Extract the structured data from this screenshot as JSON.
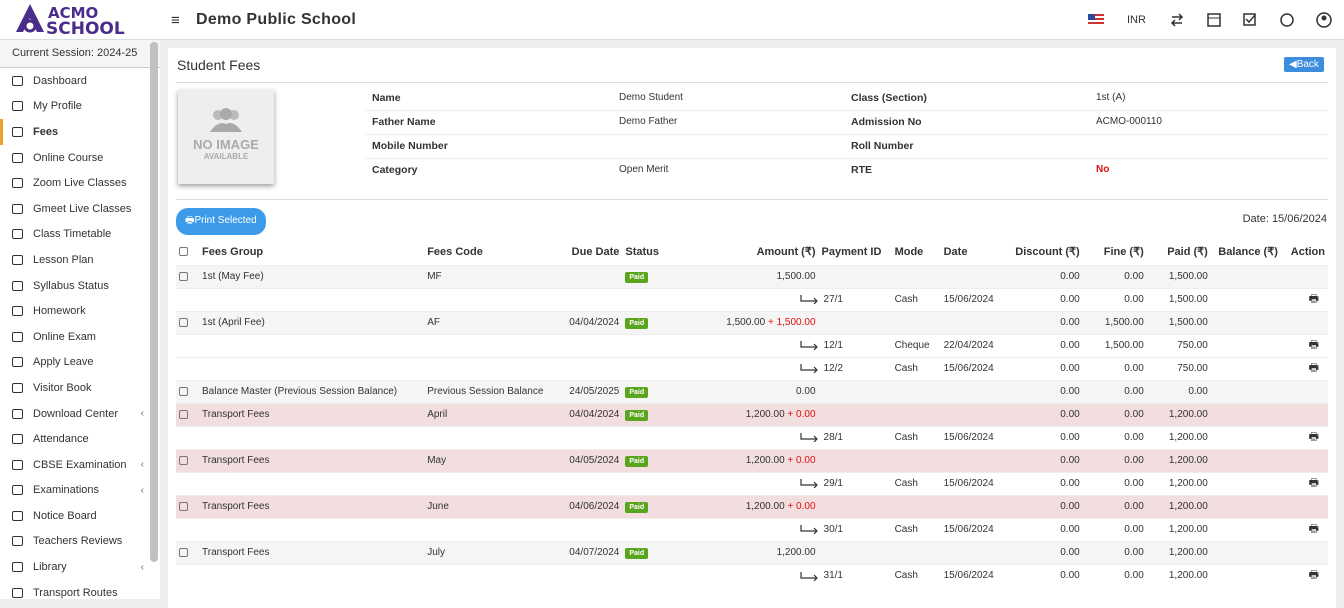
{
  "header": {
    "logo_top": "ACMO",
    "logo_bottom": "SCHOOL",
    "school": "Demo Public School",
    "currency": "INR"
  },
  "sidebar": {
    "session": "Current Session: 2024-25",
    "active": 2,
    "items": [
      {
        "label": "Dashboard"
      },
      {
        "label": "My Profile"
      },
      {
        "label": "Fees"
      },
      {
        "label": "Online Course"
      },
      {
        "label": "Zoom Live Classes"
      },
      {
        "label": "Gmeet Live Classes"
      },
      {
        "label": "Class Timetable"
      },
      {
        "label": "Lesson Plan"
      },
      {
        "label": "Syllabus Status"
      },
      {
        "label": "Homework"
      },
      {
        "label": "Online Exam"
      },
      {
        "label": "Apply Leave"
      },
      {
        "label": "Visitor Book"
      },
      {
        "label": "Download Center",
        "submenu": true
      },
      {
        "label": "Attendance"
      },
      {
        "label": "CBSE Examination",
        "submenu": true
      },
      {
        "label": "Examinations",
        "submenu": true
      },
      {
        "label": "Notice Board"
      },
      {
        "label": "Teachers Reviews"
      },
      {
        "label": "Library",
        "submenu": true
      },
      {
        "label": "Transport Routes"
      }
    ]
  },
  "page": {
    "title": "Student Fees",
    "back": "Back",
    "no_image": "NO IMAGE",
    "available": "AVAILABLE",
    "info": [
      [
        {
          "label": "Name",
          "value": "Demo Student"
        },
        {
          "label": "Class (Section)",
          "value": "1st (A)"
        }
      ],
      [
        {
          "label": "Father Name",
          "value": "Demo Father"
        },
        {
          "label": "Admission No",
          "value": "ACMO-000110"
        }
      ],
      [
        {
          "label": "Mobile Number"
        },
        {
          "label": "Roll Number"
        }
      ],
      [
        {
          "label": "Category",
          "value": "Open Merit"
        },
        {
          "label": "RTE",
          "value": "No",
          "color": "#dd1111"
        }
      ]
    ],
    "print": "Print Selected",
    "date": "Date: 15/06/2024"
  },
  "table": {
    "headers": [
      "Fees Group",
      "Fees Code",
      "Due Date",
      "Status",
      "Amount (₹)",
      "Payment ID",
      "Mode",
      "Date",
      "Discount (₹)",
      "Fine (₹)",
      "Paid (₹)",
      "Balance (₹)",
      "Action"
    ],
    "rows": [
      {
        "group": "1st (May Fee)",
        "code": "MF",
        "status": "Paid",
        "amount": "1,500.00",
        "discount": "0.00",
        "fine": "0.00",
        "paid": "1,500.00"
      },
      {
        "pid": "27/1",
        "mode": "Cash",
        "date": "15/06/2024",
        "discount": "0.00",
        "fine": "0.00",
        "paid": "1,500.00"
      },
      {
        "group": "1st (April Fee)",
        "code": "AF",
        "due": "04/04/2024",
        "status": "Paid",
        "amount": "1,500.00",
        "extra": "+ 1,500.00",
        "discount": "0.00",
        "fine": "1,500.00",
        "paid": "1,500.00"
      },
      {
        "pid": "12/1",
        "mode": "Cheque",
        "date": "22/04/2024",
        "discount": "0.00",
        "fine": "1,500.00",
        "paid": "750.00"
      },
      {
        "pid": "12/2",
        "mode": "Cash",
        "date": "15/06/2024",
        "discount": "0.00",
        "fine": "0.00",
        "paid": "750.00"
      },
      {
        "group": "Balance Master (Previous Session Balance)",
        "code": "Previous Session Balance",
        "due": "24/05/2025",
        "status": "Paid",
        "amount": "0.00",
        "discount": "0.00",
        "fine": "0.00",
        "paid": "0.00"
      },
      {
        "group": "Transport Fees",
        "code": "April",
        "due": "04/04/2024",
        "status": "Paid",
        "amount": "1,200.00",
        "extra": "+ 0.00",
        "discount": "0.00",
        "fine": "0.00",
        "paid": "1,200.00",
        "bg": "#f2dede"
      },
      {
        "pid": "28/1",
        "mode": "Cash",
        "date": "15/06/2024",
        "discount": "0.00",
        "fine": "0.00",
        "paid": "1,200.00"
      },
      {
        "group": "Transport Fees",
        "code": "May",
        "due": "04/05/2024",
        "status": "Paid",
        "amount": "1,200.00",
        "extra": "+ 0.00",
        "discount": "0.00",
        "fine": "0.00",
        "paid": "1,200.00",
        "bg": "#f2dede"
      },
      {
        "pid": "29/1",
        "mode": "Cash",
        "date": "15/06/2024",
        "discount": "0.00",
        "fine": "0.00",
        "paid": "1,200.00"
      },
      {
        "group": "Transport Fees",
        "code": "June",
        "due": "04/06/2024",
        "status": "Paid",
        "amount": "1,200.00",
        "extra": "+ 0.00",
        "discount": "0.00",
        "fine": "0.00",
        "paid": "1,200.00",
        "bg": "#f2dede"
      },
      {
        "pid": "30/1",
        "mode": "Cash",
        "date": "15/06/2024",
        "discount": "0.00",
        "fine": "0.00",
        "paid": "1,200.00"
      },
      {
        "group": "Transport Fees",
        "code": "July",
        "due": "04/07/2024",
        "status": "Paid",
        "amount": "1,200.00",
        "discount": "0.00",
        "fine": "0.00",
        "paid": "1,200.00"
      },
      {
        "pid": "31/1",
        "mode": "Cash",
        "date": "15/06/2024",
        "discount": "0.00",
        "fine": "0.00",
        "paid": "1,200.00"
      }
    ]
  }
}
